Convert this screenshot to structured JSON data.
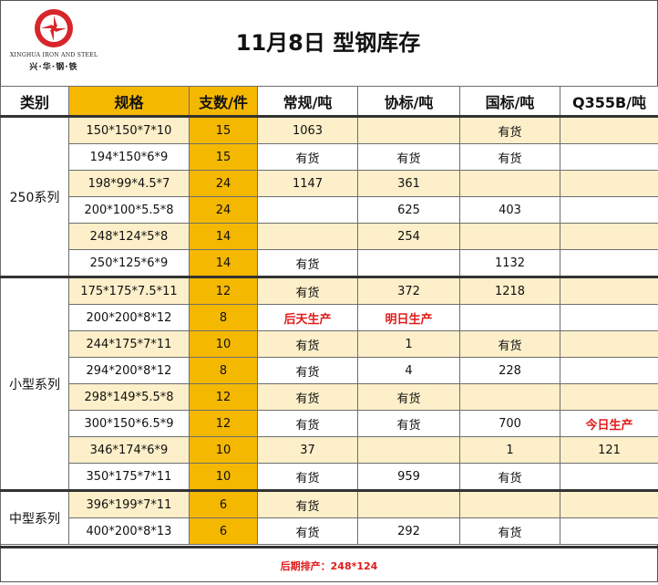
{
  "logo": {
    "english": "XINGHUA IRON AND STEEL",
    "chinese": "兴·华·钢·铁",
    "brand_color": "#d7262b"
  },
  "title": "11月8日  型钢库存",
  "columns": [
    "类别",
    "规格",
    "支数/件",
    "常规/吨",
    "协标/吨",
    "国标/吨",
    "Q355B/吨"
  ],
  "groups": [
    {
      "name": "250系列",
      "rows": [
        [
          "150*150*7*10",
          "15",
          "1063",
          "",
          "有货",
          ""
        ],
        [
          "194*150*6*9",
          "15",
          "有货",
          "有货",
          "有货",
          ""
        ],
        [
          "198*99*4.5*7",
          "24",
          "1147",
          "361",
          "",
          ""
        ],
        [
          "200*100*5.5*8",
          "24",
          "",
          "625",
          "403",
          ""
        ],
        [
          "248*124*5*8",
          "14",
          "",
          "254",
          "",
          ""
        ],
        [
          "250*125*6*9",
          "14",
          "有货",
          "",
          "1132",
          ""
        ]
      ]
    },
    {
      "name": "小型系列",
      "rows": [
        [
          "175*175*7.5*11",
          "12",
          "有货",
          "372",
          "1218",
          ""
        ],
        [
          "200*200*8*12",
          "8",
          "后天生产",
          "明日生产",
          "",
          ""
        ],
        [
          "244*175*7*11",
          "10",
          "有货",
          "1",
          "有货",
          ""
        ],
        [
          "294*200*8*12",
          "8",
          "有货",
          "4",
          "228",
          ""
        ],
        [
          "298*149*5.5*8",
          "12",
          "有货",
          "有货",
          "",
          ""
        ],
        [
          "300*150*6.5*9",
          "12",
          "有货",
          "有货",
          "700",
          "今日生产"
        ],
        [
          "346*174*6*9",
          "10",
          "37",
          "",
          "1",
          "121"
        ],
        [
          "350*175*7*11",
          "10",
          "有货",
          "959",
          "有货",
          ""
        ]
      ]
    },
    {
      "name": "中型系列",
      "rows": [
        [
          "396*199*7*11",
          "6",
          "有货",
          "",
          "",
          ""
        ],
        [
          "400*200*8*13",
          "6",
          "有货",
          "292",
          "有货",
          ""
        ]
      ]
    }
  ],
  "red_values": [
    "后天生产",
    "明日生产",
    "今日生产"
  ],
  "footer": "后期排产：248*124",
  "colors": {
    "header_orange": "#f5b800",
    "row_tint": "#fcefc9",
    "alert_red": "#e01b1b"
  }
}
